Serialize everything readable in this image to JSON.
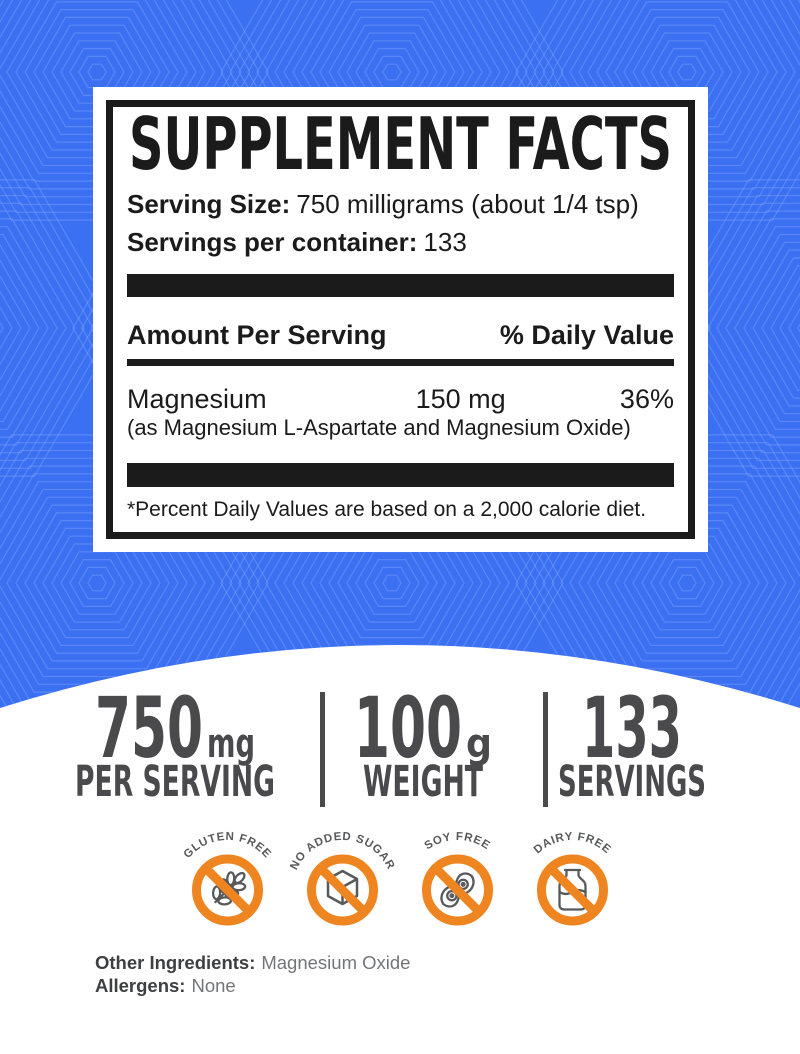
{
  "panel": {
    "title": "SUPPLEMENT FACTS",
    "serving_size_label": "Serving Size:",
    "serving_size_value": "750 milligrams (about 1/4 tsp)",
    "servings_label": "Servings per container:",
    "servings_value": "133",
    "amount_header": "Amount Per Serving",
    "dv_header": "% Daily Value",
    "rows": [
      {
        "name": "Magnesium",
        "amount": "150 mg",
        "dv": "36%",
        "detail": "(as Magnesium L-Aspartate and Magnesium Oxide)"
      }
    ],
    "footnote": "*Percent Daily Values are based on a 2,000 calorie diet."
  },
  "stats": [
    {
      "value": "750",
      "unit": "mg",
      "label": "PER SERVING"
    },
    {
      "value": "100",
      "unit": "g",
      "label": "WEIGHT"
    },
    {
      "value": "133",
      "unit": "",
      "label": "SERVINGS"
    }
  ],
  "badges": [
    {
      "label": "GLUTEN FREE",
      "icon": "wheat-icon"
    },
    {
      "label": "NO ADDED SUGAR",
      "icon": "sugar-cube-icon"
    },
    {
      "label": "SOY FREE",
      "icon": "soy-pod-icon"
    },
    {
      "label": "DAIRY FREE",
      "icon": "milk-bottle-icon"
    }
  ],
  "footer": {
    "other_ingredients_label": "Other Ingredients:",
    "other_ingredients_value": "Magnesium Oxide",
    "allergens_label": "Allergens:",
    "allergens_value": "None"
  },
  "colors": {
    "background_blue": "#3B70F3",
    "pattern_line": "#86A8F8",
    "accent_orange": "#EE8520",
    "stat_gray": "#4A4A4D",
    "icon_gray": "#58595B",
    "ink": "#1B1B1B",
    "footer_label": "#3E3F41",
    "footer_value": "#737578"
  }
}
